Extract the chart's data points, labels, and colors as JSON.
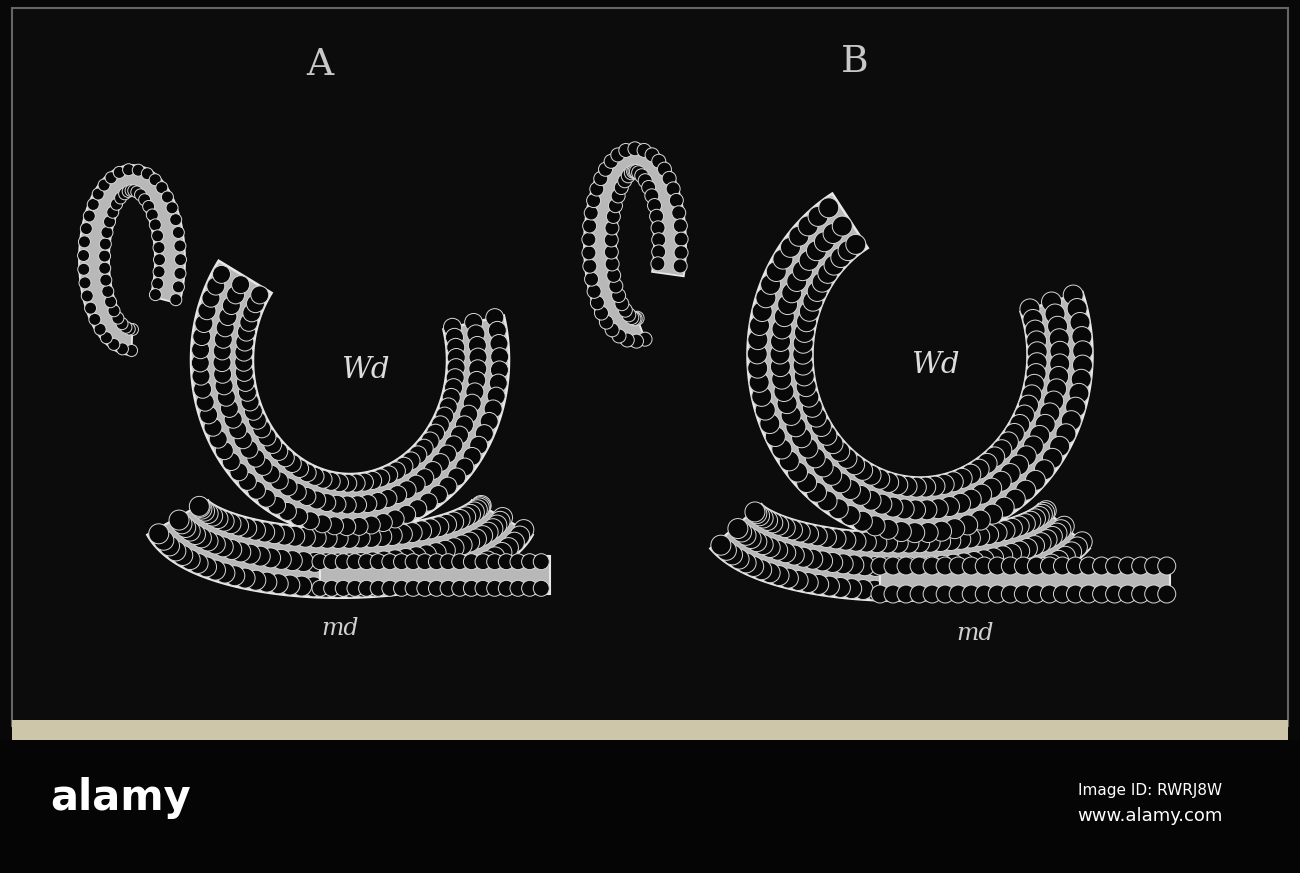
{
  "bg_color": "#080808",
  "image_bg": "#0c0c0c",
  "border_color": "#666666",
  "tissue_fill": "#b8b8b8",
  "tissue_edge": "#e8e8e8",
  "lumen_fill": "#0a0a0a",
  "cell_fill": "#080808",
  "cell_edge": "#d8d8d8",
  "paper_color": "#cdc6a8",
  "bottom_color": "#050505",
  "label_color": "#cccccc",
  "label_A": "A",
  "label_B": "B",
  "label_Wd": "Wd",
  "label_md": "md",
  "wm_alamy": "alamy",
  "wm_id": "Image ID: RWRJ8W",
  "wm_url": "www.alamy.com"
}
